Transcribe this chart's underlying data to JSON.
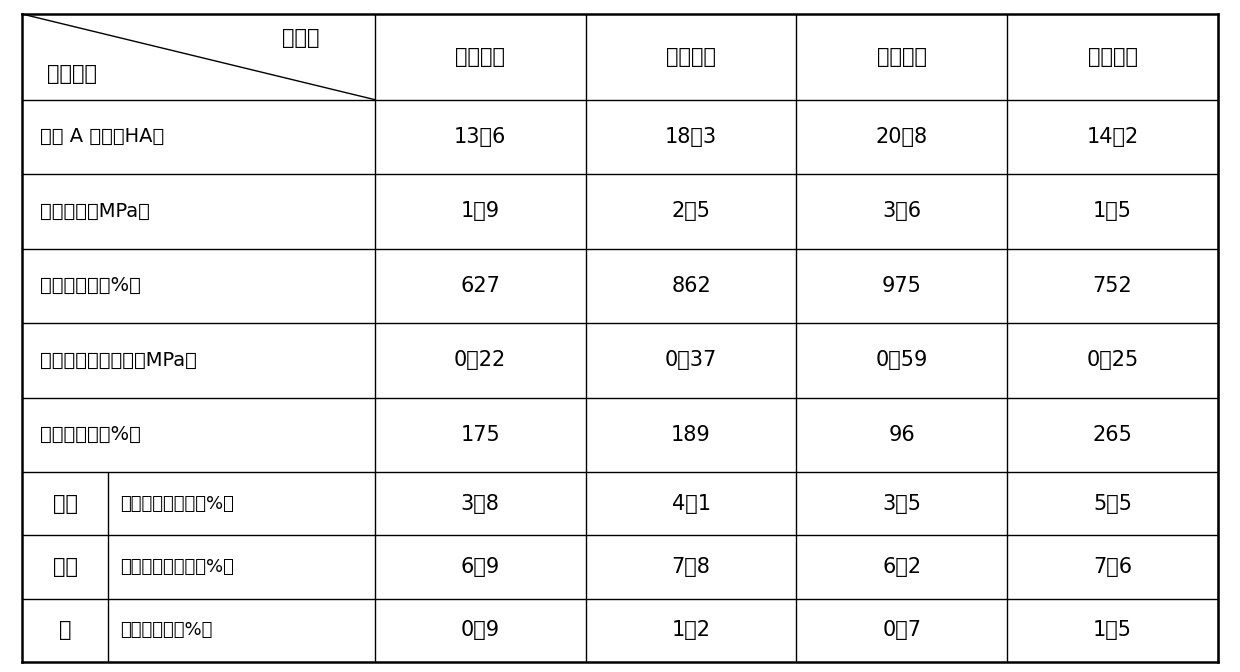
{
  "background_color": "#ffffff",
  "header_row": [
    "",
    "实施例一",
    "实施例二",
    "实施例三",
    "实施例四"
  ],
  "col_header_top_left": "实施例",
  "col_header_bottom_left": "性能参数",
  "rows": [
    {
      "group": null,
      "label": "邵尔 A 硬度（HA）",
      "values": [
        "13．6",
        "18．3",
        "20．8",
        "14．2"
      ]
    },
    {
      "group": null,
      "label": "拉伸强度（MPa）",
      "values": [
        "1．9",
        "2．5",
        "3．6",
        "1．5"
      ]
    },
    {
      "group": null,
      "label": "断裂伸长率（%）",
      "values": [
        "627",
        "862",
        "975",
        "752"
      ]
    },
    {
      "group": null,
      "label": "初始剪切储能模量（MPa）",
      "values": [
        "0．22",
        "0．37",
        "0．59",
        "0．25"
      ]
    },
    {
      "group": null,
      "label": "磁流变效应（%）",
      "values": [
        "175",
        "189",
        "96",
        "265"
      ]
    },
    {
      "group": "热空气老化",
      "label": "拉伸强度变化率（%）",
      "values": [
        "3．8",
        "4．1",
        "3．5",
        "5．5"
      ]
    },
    {
      "group": "热空气老化",
      "label": "断裂伸长变化率（%）",
      "values": [
        "6．9",
        "7．8",
        "6．2",
        "7．6"
      ]
    },
    {
      "group": "热空气老化",
      "label": "硬度变化率（%）",
      "values": [
        "0．9",
        "1．2",
        "0．7",
        "1．5"
      ]
    }
  ],
  "group_label_chars": [
    "热空",
    "气老",
    "化"
  ],
  "line_color": "#000000",
  "text_color": "#000000"
}
